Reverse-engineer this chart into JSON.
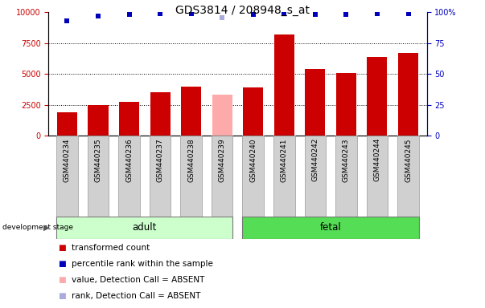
{
  "title": "GDS3814 / 208948_s_at",
  "categories": [
    "GSM440234",
    "GSM440235",
    "GSM440236",
    "GSM440237",
    "GSM440238",
    "GSM440239",
    "GSM440240",
    "GSM440241",
    "GSM440242",
    "GSM440243",
    "GSM440244",
    "GSM440245"
  ],
  "bar_values": [
    1900,
    2500,
    2700,
    3500,
    4000,
    3350,
    3900,
    8200,
    5400,
    5050,
    6400,
    6700
  ],
  "bar_colors": [
    "#cc0000",
    "#cc0000",
    "#cc0000",
    "#cc0000",
    "#cc0000",
    "#ffaaaa",
    "#cc0000",
    "#cc0000",
    "#cc0000",
    "#cc0000",
    "#cc0000",
    "#cc0000"
  ],
  "rank_values": [
    93,
    97,
    98,
    99,
    99,
    96,
    98,
    99,
    98,
    98,
    99,
    99
  ],
  "rank_colors": [
    "#0000bb",
    "#0000bb",
    "#0000bb",
    "#0000bb",
    "#0000bb",
    "#aaaadd",
    "#0000bb",
    "#0000bb",
    "#0000bb",
    "#0000bb",
    "#0000bb",
    "#0000bb"
  ],
  "ylim_left": [
    0,
    10000
  ],
  "ylim_right": [
    0,
    100
  ],
  "yticks_left": [
    0,
    2500,
    5000,
    7500,
    10000
  ],
  "yticks_right": [
    0,
    25,
    50,
    75,
    100
  ],
  "group_adult_indices": [
    0,
    5
  ],
  "group_fetal_indices": [
    6,
    11
  ],
  "group_adult_label": "adult",
  "group_fetal_label": "fetal",
  "group_adult_color": "#ccffcc",
  "group_fetal_color": "#55dd55",
  "stage_label": "development stage",
  "legend_items": [
    {
      "label": "transformed count",
      "color": "#cc0000"
    },
    {
      "label": "percentile rank within the sample",
      "color": "#0000bb"
    },
    {
      "label": "value, Detection Call = ABSENT",
      "color": "#ffaaaa"
    },
    {
      "label": "rank, Detection Call = ABSENT",
      "color": "#aaaadd"
    }
  ],
  "left_axis_color": "#cc0000",
  "right_axis_color": "#0000bb",
  "title_fontsize": 10,
  "tick_fontsize": 7,
  "label_fontsize": 8.5,
  "legend_fontsize": 7.5
}
